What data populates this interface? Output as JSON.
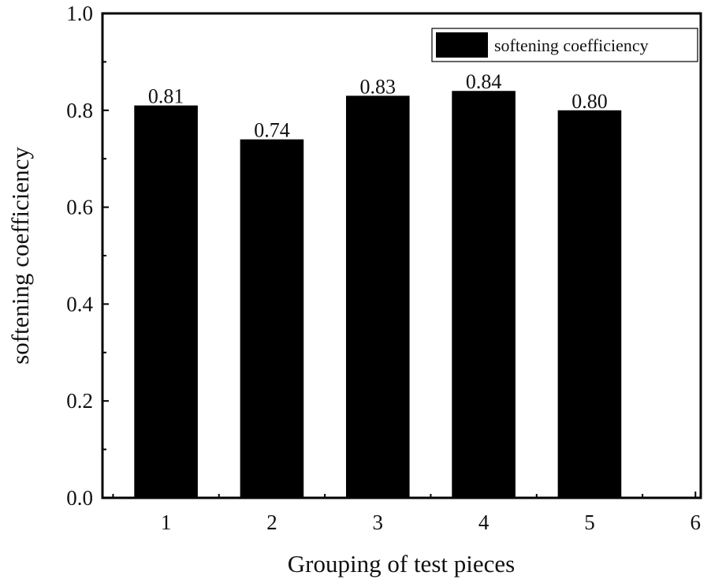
{
  "chart_data": {
    "type": "bar",
    "title": "",
    "xlabel": "Grouping of test pieces",
    "ylabel": "softening coefficiency",
    "categories": [
      "1",
      "2",
      "3",
      "4",
      "5"
    ],
    "x": [
      1,
      2,
      3,
      4,
      5
    ],
    "values": [
      0.81,
      0.74,
      0.83,
      0.84,
      0.8
    ],
    "data_labels": [
      "0.81",
      "0.74",
      "0.83",
      "0.84",
      "0.80"
    ],
    "series": [
      {
        "name": "softening coefficiency",
        "values": [
          0.81,
          0.74,
          0.83,
          0.84,
          0.8
        ],
        "color": "#000000"
      }
    ],
    "xlim": [
      0.4,
      6.05
    ],
    "ylim": [
      0,
      1.0
    ],
    "xticks": [
      1,
      2,
      3,
      4,
      5,
      6
    ],
    "xtick_labels": [
      "1",
      "2",
      "3",
      "4",
      "5",
      "6"
    ],
    "yticks": [
      0,
      0.2,
      0.4,
      0.6,
      0.8,
      1.0
    ],
    "ytick_labels": [
      "0.0",
      "0.2",
      "0.4",
      "0.6",
      "0.8",
      "1.0"
    ],
    "bar_width": 0.6,
    "grid": false,
    "legend": {
      "placement": "top-right",
      "entries": [
        "softening coefficiency"
      ]
    }
  }
}
